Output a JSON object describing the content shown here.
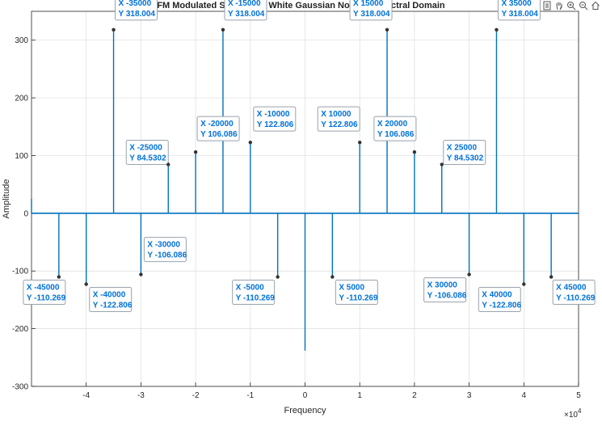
{
  "toolbar": {
    "icons": [
      "edit-icon",
      "rotate-icon",
      "data-tip-icon",
      "pan-icon",
      "zoom-in-icon",
      "zoom-out-icon",
      "home-icon"
    ]
  },
  "colors": {
    "stem": "#0072BD",
    "datatip_text": "#0072d9",
    "grid": "#dcdcdc",
    "axis": "#262626"
  },
  "chart_data": {
    "type": "stem",
    "title": "FM Modulated Signal with White Gaussian Noise in Spectral Domain",
    "xlabel": "Frequency",
    "ylabel": "Amplitude",
    "x_multiplier_label": "×10",
    "x_multiplier_exp": "4",
    "xlim": [
      -50000,
      50000
    ],
    "ylim": [
      -300,
      350
    ],
    "xticks": [
      -40000,
      -30000,
      -20000,
      -10000,
      0,
      10000,
      20000,
      30000,
      40000,
      50000
    ],
    "xtick_labels": [
      "-4",
      "-3",
      "-2",
      "-1",
      "0",
      "1",
      "2",
      "3",
      "4",
      "5"
    ],
    "yticks": [
      -300,
      -200,
      -100,
      0,
      100,
      200,
      300
    ],
    "ytick_labels": [
      "-300",
      "-200",
      "-100",
      "0",
      "100",
      "200",
      "300"
    ],
    "grid": true,
    "stems": [
      {
        "x": -50000,
        "y": 25
      },
      {
        "x": -45000,
        "y": -110.269
      },
      {
        "x": -40000,
        "y": -122.806
      },
      {
        "x": -35000,
        "y": 318.004
      },
      {
        "x": -30000,
        "y": -106.086
      },
      {
        "x": -25000,
        "y": 84.5302
      },
      {
        "x": -20000,
        "y": 106.086
      },
      {
        "x": -15000,
        "y": 318.004
      },
      {
        "x": -10000,
        "y": 122.806
      },
      {
        "x": -5000,
        "y": -110.269
      },
      {
        "x": 0,
        "y": -238
      },
      {
        "x": 5000,
        "y": -110.269
      },
      {
        "x": 10000,
        "y": 122.806
      },
      {
        "x": 15000,
        "y": 318.004
      },
      {
        "x": 20000,
        "y": 106.086
      },
      {
        "x": 25000,
        "y": 84.5302
      },
      {
        "x": 30000,
        "y": -106.086
      },
      {
        "x": 35000,
        "y": 318.004
      },
      {
        "x": 40000,
        "y": -122.806
      },
      {
        "x": 45000,
        "y": -110.269
      }
    ],
    "datatips": [
      {
        "x": -45000,
        "y": -110.269,
        "x_label": "X -45000",
        "y_label": "Y -110.269"
      },
      {
        "x": -40000,
        "y": -122.806,
        "x_label": "X -40000",
        "y_label": "Y -122.806"
      },
      {
        "x": -35000,
        "y": 318.004,
        "x_label": "X -35000",
        "y_label": "Y 318.004"
      },
      {
        "x": -30000,
        "y": -106.086,
        "x_label": "X -30000",
        "y_label": "Y -106.086"
      },
      {
        "x": -25000,
        "y": 84.5302,
        "x_label": "X -25000",
        "y_label": "Y 84.5302"
      },
      {
        "x": -20000,
        "y": 106.086,
        "x_label": "X -20000",
        "y_label": "Y 106.086"
      },
      {
        "x": -15000,
        "y": 318.004,
        "x_label": "X -15000",
        "y_label": "Y 318.004"
      },
      {
        "x": -10000,
        "y": 122.806,
        "x_label": "X -10000",
        "y_label": "Y 122.806"
      },
      {
        "x": -5000,
        "y": -110.269,
        "x_label": "X -5000",
        "y_label": "Y -110.269"
      },
      {
        "x": 5000,
        "y": -110.269,
        "x_label": "X 5000",
        "y_label": "Y -110.269"
      },
      {
        "x": 10000,
        "y": 122.806,
        "x_label": "X 10000",
        "y_label": "Y 122.806"
      },
      {
        "x": 15000,
        "y": 318.004,
        "x_label": "X 15000",
        "y_label": "Y 318.004"
      },
      {
        "x": 20000,
        "y": 106.086,
        "x_label": "X 20000",
        "y_label": "Y 106.086"
      },
      {
        "x": 25000,
        "y": 84.5302,
        "x_label": "X 25000",
        "y_label": "Y 84.5302"
      },
      {
        "x": 30000,
        "y": -106.086,
        "x_label": "X 30000",
        "y_label": "Y -106.086"
      },
      {
        "x": 35000,
        "y": 318.004,
        "x_label": "X 35000",
        "y_label": "Y 318.004"
      },
      {
        "x": 40000,
        "y": -122.806,
        "x_label": "X 40000",
        "y_label": "Y -122.806"
      },
      {
        "x": 45000,
        "y": -110.269,
        "x_label": "X 45000",
        "y_label": "Y -110.269"
      }
    ]
  }
}
